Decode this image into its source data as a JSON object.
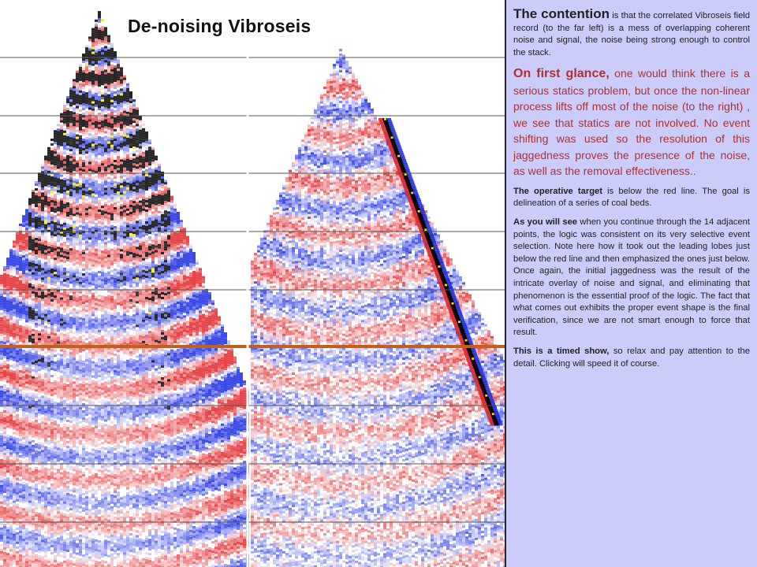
{
  "slide": {
    "title": "De-noising Vibroseis",
    "paragraphs": [
      {
        "lead": "The contention",
        "body": " is that the correlated Vibroseis field record (to the far left) is a mess of overlapping coherent noise and signal, the noise being strong enough to control the stack."
      },
      {
        "lead": "On first glance,",
        "body": " one would think there is a serious statics problem, but once the non-linear process lifts off most of the noise (to the right) , we see that statics are not involved. No event shifting was used  so the resolution of this jaggedness proves the presence of the noise, as well as the removal effectiveness.."
      },
      {
        "lead": "The operative target",
        "body": " is below the red line. The goal is delineation of a series of coal beds."
      },
      {
        "lead": "As you will see",
        "body": " when you continue through the 14 adjacent points, the logic was consistent on its very selective event selection. Note here how it took out the leading lobes just below the red line and then emphasized the ones just below. Once again, the initial jaggedness was the result of the intricate overlay of noise and signal, and eliminating that phenomenon is the essential proof of the logic. The fact that what comes out exhibits the proper event shape is the final verification, since we are not smart enough to force that result."
      },
      {
        "lead": "This is a timed show,",
        "body": " so relax and pay attention to the detail. Clicking will speed it of course."
      }
    ]
  },
  "colors": {
    "panel_bg": "#ccccfa",
    "target_line": "#c0601a",
    "positive": "#1a2ae0",
    "negative": "#e0262a",
    "peak": "#f2e600",
    "lead_red": "#b03030"
  },
  "images": {
    "left": "correlated Vibroseis field record (raw)",
    "right": "same record after non-linear de-noising"
  }
}
